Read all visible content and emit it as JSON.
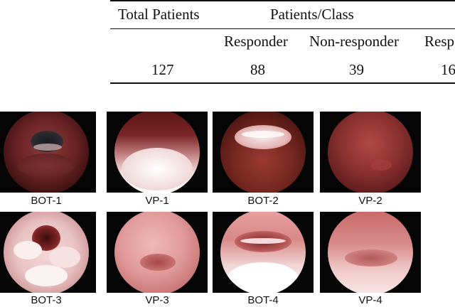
{
  "table": {
    "header": {
      "total_patients": "Total Patients",
      "patients_per_class": "Patients/Class"
    },
    "subheader": {
      "responder": "Responder",
      "non_responder": "Non-responder",
      "responder_truncated": "Resp"
    },
    "row": {
      "total": "127",
      "responder": "88",
      "non_responder": "39",
      "truncated": "16."
    }
  },
  "figure": {
    "panels": [
      {
        "label": "BOT-1"
      },
      {
        "label": "VP-1"
      },
      {
        "label": "BOT-2"
      },
      {
        "label": "VP-2"
      },
      {
        "label": "BOT-3"
      },
      {
        "label": "VP-3"
      },
      {
        "label": "BOT-4"
      },
      {
        "label": "VP-4"
      }
    ]
  }
}
